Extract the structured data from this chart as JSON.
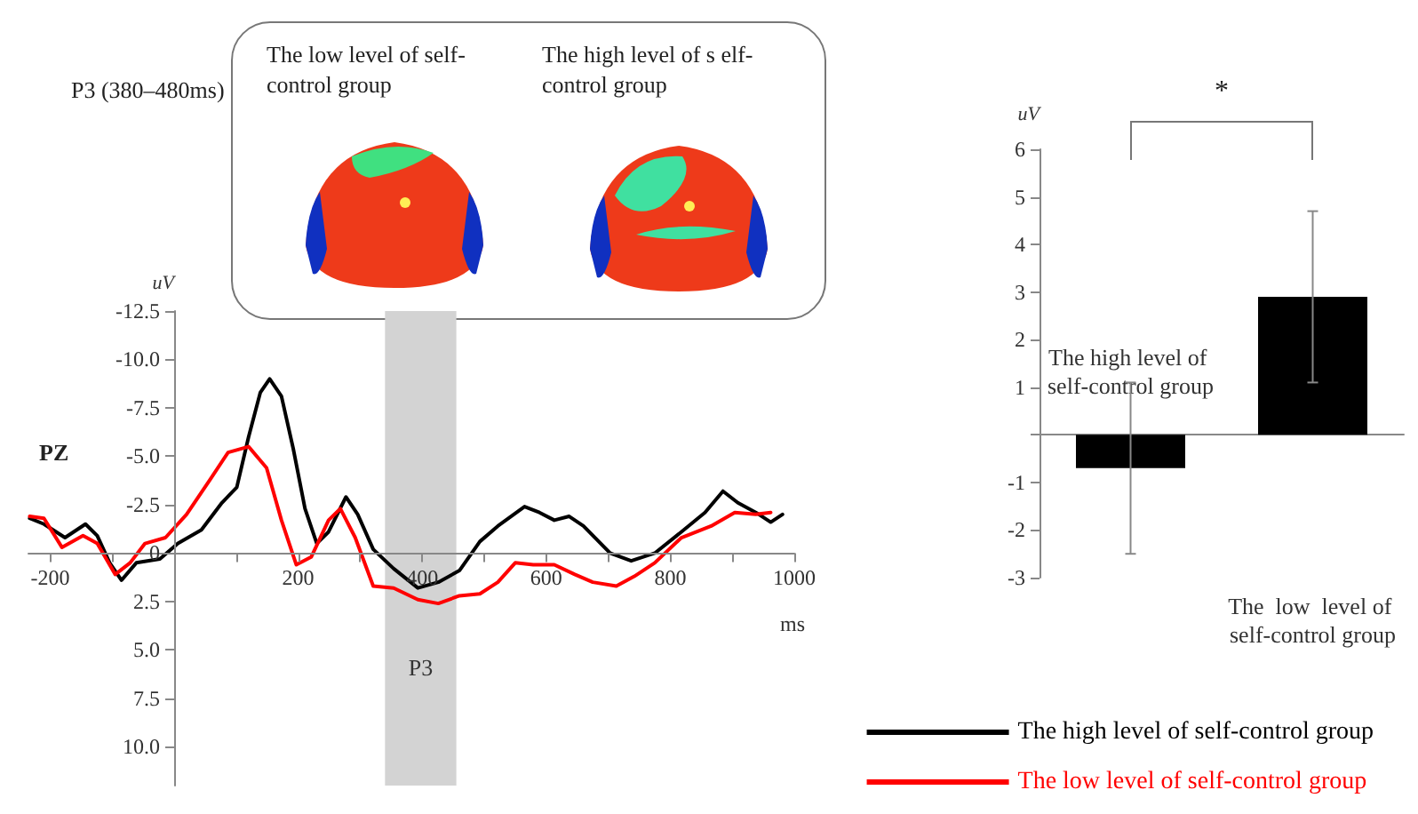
{
  "chart_data": [
    {
      "type": "line",
      "ylabel": "uV",
      "xlabel": "ms",
      "annotations": [
        "P3 (380–480ms)",
        "PZ",
        "The low level of self-control group",
        "The high level of s elf-control group"
      ],
      "xlim": [
        -235,
        1000
      ],
      "xticks": [
        -200,
        {
          "value": -100,
          "label": null
        },
        {
          "value": 0,
          "label": null
        },
        {
          "value": 100,
          "label": null
        },
        200,
        {
          "value": 300,
          "label": null
        },
        400,
        {
          "value": 500,
          "label": null
        },
        600,
        {
          "value": 700,
          "label": null
        },
        800,
        {
          "value": 900,
          "label": null
        },
        1000
      ],
      "ylim": [
        12,
        -12.5
      ],
      "yticks": [
        {
          "value": -12.5,
          "label": "-12.5"
        },
        {
          "value": -10,
          "label": "-10.0"
        },
        {
          "value": -7.5,
          "label": "-7.5"
        },
        {
          "value": -5,
          "label": "-5.0"
        },
        {
          "value": -2.5,
          "label": "-2.5"
        },
        0,
        {
          "value": 2.5,
          "label": "2.5"
        },
        {
          "value": 5,
          "label": "5.0"
        },
        {
          "value": 7.5,
          "label": "7.5"
        },
        {
          "value": 10,
          "label": "10.0"
        }
      ],
      "bands": [
        {
          "axis": "x",
          "from": 340,
          "to": 455,
          "label": "P3",
          "color": "#d3d3d3"
        }
      ],
      "legend": "bottom right",
      "marker": "none",
      "line_style": "solid",
      "series": [
        {
          "name": "The high level of self-control group",
          "color": "#000000",
          "x": [
            -233,
            -210,
            -176,
            -143,
            -124,
            -104,
            -85,
            -61,
            -23,
            6,
            44,
            77,
            101,
            120,
            139,
            154,
            173,
            192,
            211,
            230,
            249,
            277,
            296,
            321,
            354,
            393,
            426,
            460,
            493,
            522,
            565,
            589,
            613,
            637,
            660,
            703,
            737,
            775,
            818,
            856,
            885,
            909,
            938,
            962,
            981
          ],
          "values": [
            -1.8,
            -1.5,
            -0.8,
            -1.5,
            -0.9,
            0.5,
            1.4,
            0.5,
            0.3,
            -0.5,
            -1.2,
            -2.6,
            -3.4,
            -6.0,
            -8.3,
            -9.0,
            -8.1,
            -5.4,
            -2.3,
            -0.5,
            -1.1,
            -2.9,
            -2.0,
            -0.2,
            0.8,
            1.8,
            1.5,
            0.9,
            -0.6,
            -1.4,
            -2.4,
            -2.1,
            -1.7,
            -1.9,
            -1.4,
            0,
            0.4,
            0,
            -1.1,
            -2.1,
            -3.2,
            -2.6,
            -2.1,
            -1.6,
            -2.0
          ]
        },
        {
          "name": "The low level of self-control group",
          "color": "#ff0000",
          "x": [
            -233,
            -210,
            -181,
            -147,
            -124,
            -95,
            -71,
            -47,
            -14,
            20,
            58,
            87,
            120,
            149,
            173,
            197,
            221,
            249,
            268,
            292,
            321,
            354,
            393,
            426,
            460,
            493,
            522,
            550,
            579,
            613,
            646,
            675,
            713,
            742,
            775,
            818,
            866,
            904,
            938,
            962
          ],
          "values": [
            -1.9,
            -1.8,
            -0.3,
            -0.9,
            -0.5,
            1.1,
            0.5,
            -0.5,
            -0.8,
            -2.0,
            -3.8,
            -5.2,
            -5.5,
            -4.4,
            -1.7,
            0.6,
            0.2,
            -1.7,
            -2.3,
            -0.8,
            1.7,
            1.8,
            2.4,
            2.6,
            2.2,
            2.1,
            1.5,
            0.5,
            0.6,
            0.6,
            1.1,
            1.5,
            1.7,
            1.2,
            0.5,
            -0.8,
            -1.4,
            -2.1,
            -2.0,
            -2.1
          ]
        }
      ]
    },
    {
      "type": "bar",
      "ylabel": "uV",
      "annotations": [
        "*"
      ],
      "categories": [
        "The high level of self-control group",
        "The  low  level of self-control group"
      ],
      "values": [
        -0.7,
        2.9
      ],
      "color": "#000000",
      "errors": [
        [
          -2.5,
          1.1
        ],
        [
          1.1,
          4.7
        ]
      ],
      "ylim": [
        -3,
        6
      ],
      "yticks": [
        -3,
        -2,
        -1,
        {
          "value": 0,
          "label": null
        },
        1,
        2,
        3,
        4,
        5,
        6
      ]
    }
  ]
}
